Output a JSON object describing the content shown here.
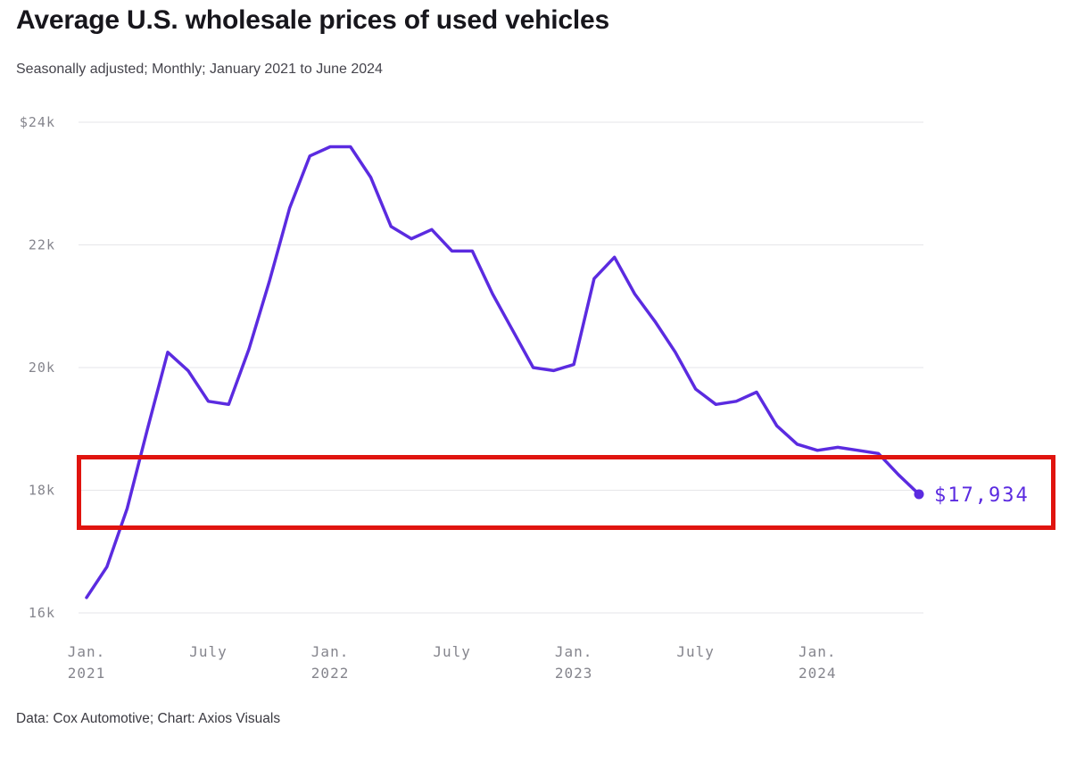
{
  "header": {
    "title": "Average U.S. wholesale prices of used vehicles",
    "subtitle": "Seasonally adjusted; Monthly; January 2021 to June 2024"
  },
  "footer": {
    "credit": "Data: Cox Automotive; Chart: Axios Visuals"
  },
  "annotation": {
    "type": "rectangle",
    "color": "#e0140f"
  },
  "chart_data": {
    "type": "line",
    "title": "Average U.S. wholesale prices of used vehicles",
    "xlabel": "",
    "ylabel": "",
    "grid": true,
    "legend": false,
    "line_color": "#5b2be0",
    "ylim": [
      16000,
      24000
    ],
    "end_label": "$17,934",
    "y_ticks": [
      {
        "label": "$24k",
        "value": 24000
      },
      {
        "label": "22k",
        "value": 22000
      },
      {
        "label": "20k",
        "value": 20000
      },
      {
        "label": "18k",
        "value": 18000
      },
      {
        "label": "16k",
        "value": 16000
      }
    ],
    "x_ticks": [
      {
        "label": "Jan.",
        "year": "2021",
        "index": 0
      },
      {
        "label": "July",
        "year": "",
        "index": 6
      },
      {
        "label": "Jan.",
        "year": "2022",
        "index": 12
      },
      {
        "label": "July",
        "year": "",
        "index": 18
      },
      {
        "label": "Jan.",
        "year": "2023",
        "index": 24
      },
      {
        "label": "July",
        "year": "",
        "index": 30
      },
      {
        "label": "Jan.",
        "year": "2024",
        "index": 36
      }
    ],
    "x": [
      "Jan. 2021",
      "Feb. 2021",
      "Mar. 2021",
      "Apr. 2021",
      "May 2021",
      "June 2021",
      "July 2021",
      "Aug. 2021",
      "Sept. 2021",
      "Oct. 2021",
      "Nov. 2021",
      "Dec. 2021",
      "Jan. 2022",
      "Feb. 2022",
      "Mar. 2022",
      "Apr. 2022",
      "May 2022",
      "June 2022",
      "July 2022",
      "Aug. 2022",
      "Sept. 2022",
      "Oct. 2022",
      "Nov. 2022",
      "Dec. 2022",
      "Jan. 2023",
      "Feb. 2023",
      "Mar. 2023",
      "Apr. 2023",
      "May 2023",
      "June 2023",
      "July 2023",
      "Aug. 2023",
      "Sept. 2023",
      "Oct. 2023",
      "Nov. 2023",
      "Dec. 2023",
      "Jan. 2024",
      "Feb. 2024",
      "Mar. 2024",
      "Apr. 2024",
      "May 2024",
      "June 2024"
    ],
    "values": [
      16250,
      16750,
      17700,
      19000,
      20250,
      19950,
      19450,
      19400,
      20300,
      21400,
      22600,
      23450,
      23600,
      23600,
      23100,
      22300,
      22100,
      22250,
      21900,
      21900,
      21200,
      20600,
      20000,
      19950,
      20050,
      21450,
      21800,
      21200,
      20750,
      20250,
      19650,
      19400,
      19450,
      19600,
      19050,
      18750,
      18650,
      18700,
      18650,
      18600,
      18250,
      17934
    ]
  }
}
